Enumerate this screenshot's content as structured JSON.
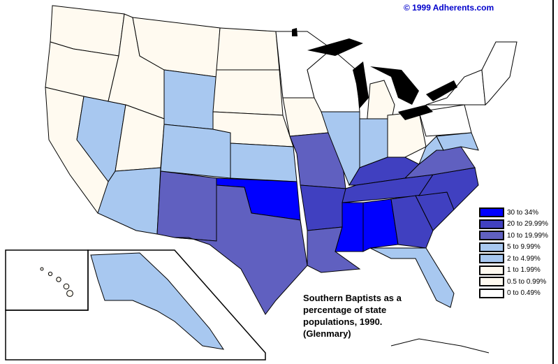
{
  "copyright": "© 1999 Adherents.com",
  "caption": [
    "Southern Baptists as a",
    "percentage of state",
    "populations, 1990.",
    "(Glenmary)"
  ],
  "legend": [
    {
      "label": "30 to 34%",
      "color": "#0000ff"
    },
    {
      "label": "20 to 29.99%",
      "color": "#4040c0"
    },
    {
      "label": "10 to 19.99%",
      "color": "#6060c0"
    },
    {
      "label": "5 to 9.99%",
      "color": "#a8c8f0"
    },
    {
      "label": "2 to 4.99%",
      "color": "#a8c8f0"
    },
    {
      "label": "1 to 1.99%",
      "color": "#fffaf0"
    },
    {
      "label": "0.5 to 0.99%",
      "color": "#fffaf0"
    },
    {
      "label": "0 to 0.49%",
      "color": "#ffffff"
    }
  ],
  "colors": {
    "water": "#000000",
    "border": "#000000"
  }
}
